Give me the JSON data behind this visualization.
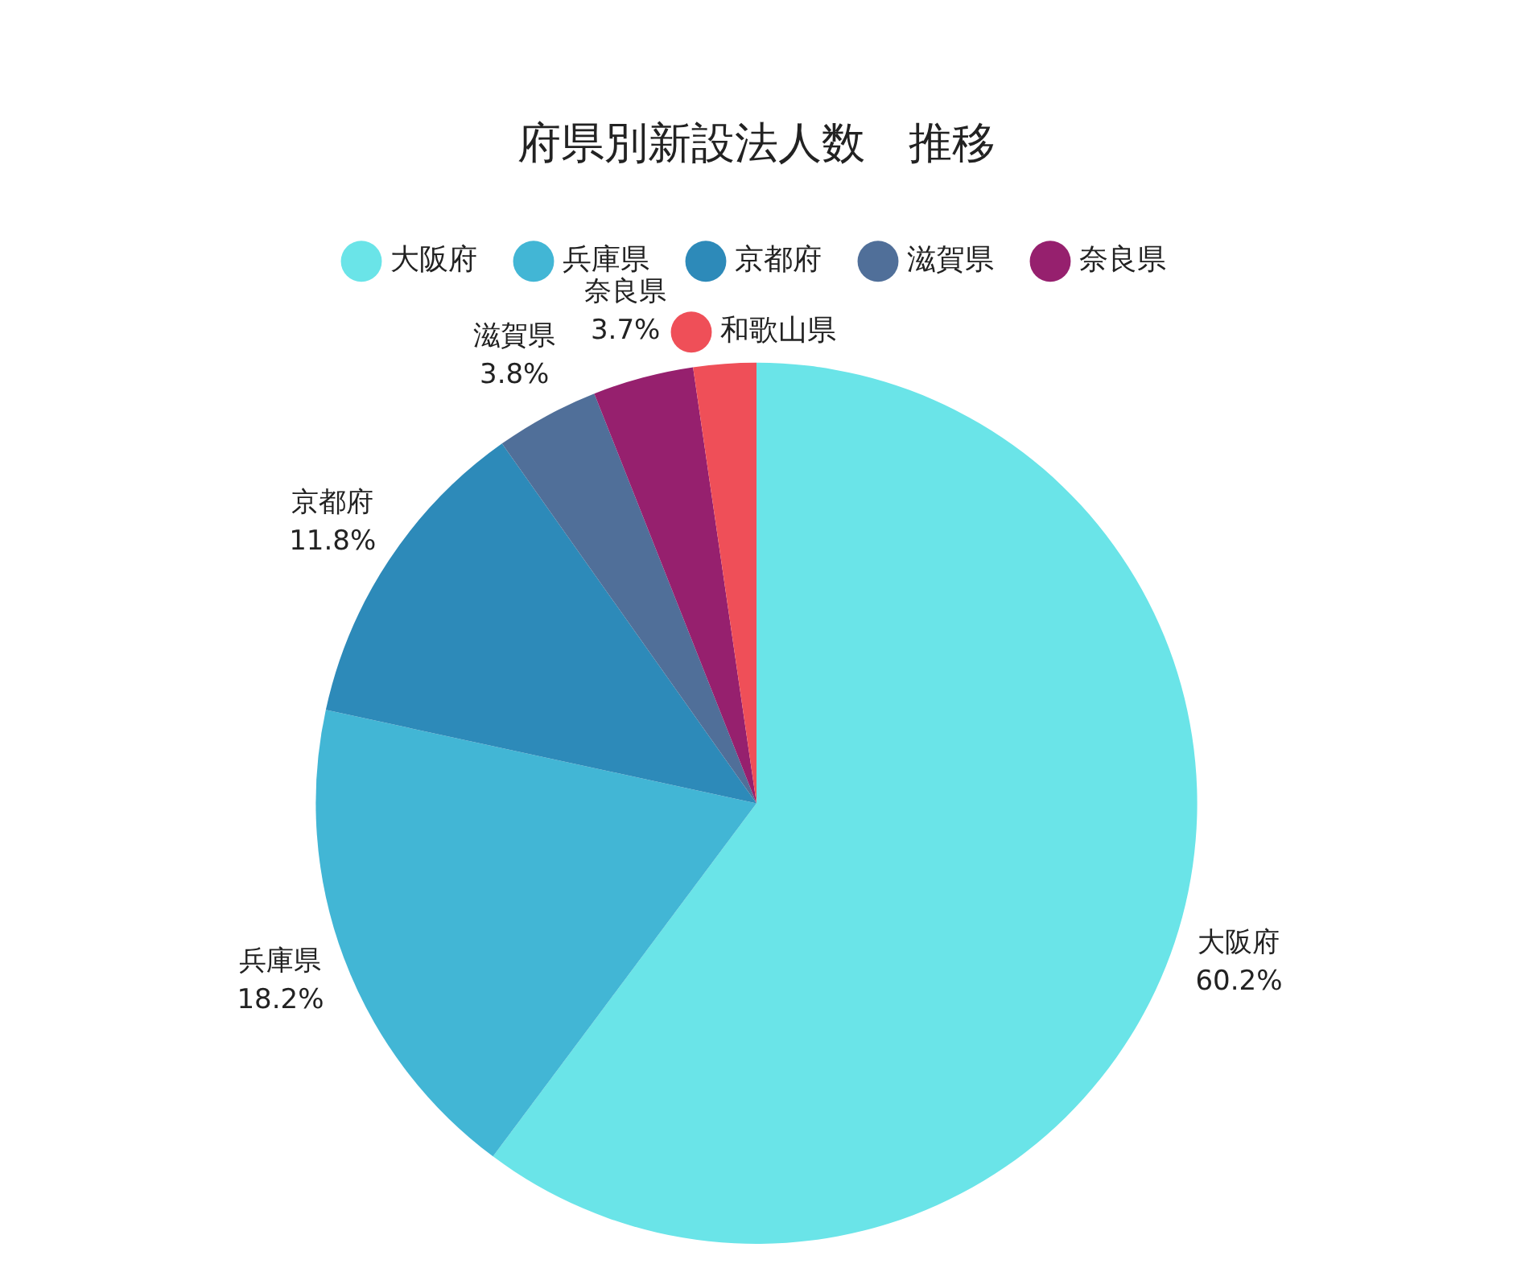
{
  "chart_data": {
    "type": "pie",
    "title": "府県別新設法人数　推移",
    "categories": [
      "大阪府",
      "兵庫県",
      "京都府",
      "滋賀県",
      "奈良県",
      "和歌山県"
    ],
    "values": [
      60.2,
      18.2,
      11.8,
      3.8,
      3.7,
      2.3
    ],
    "value_labels": [
      "60.2%",
      "18.2%",
      "11.8%",
      "3.8%",
      "3.7%",
      null
    ],
    "colors": [
      "#6ae4e8",
      "#42b6d5",
      "#2d8ab9",
      "#506f99",
      "#96206e",
      "#ef4f58"
    ],
    "legend": "top"
  }
}
